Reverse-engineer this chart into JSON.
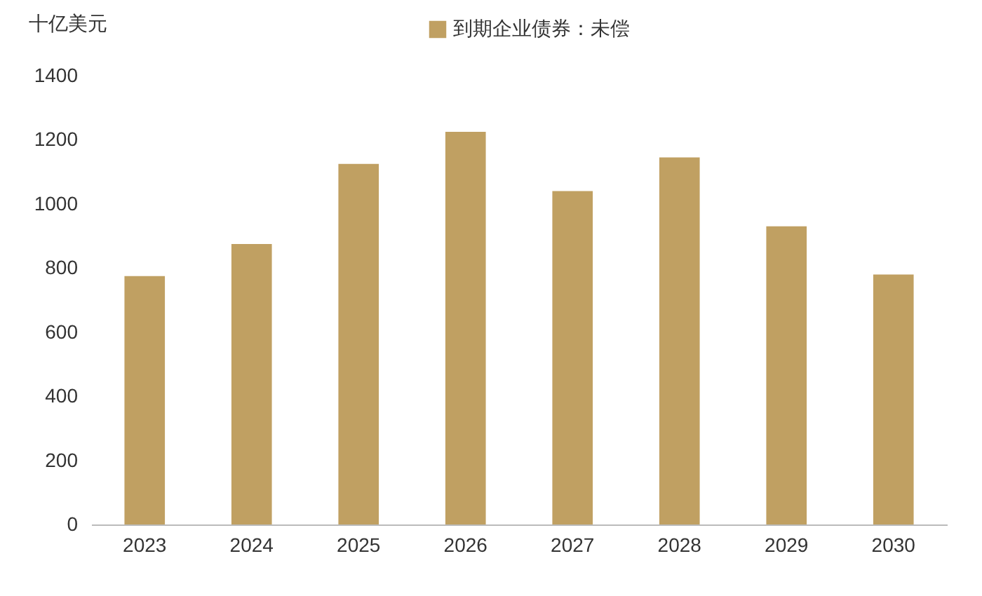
{
  "chart_data": {
    "type": "bar",
    "ylabel": "十亿美元",
    "categories": [
      "2023",
      "2024",
      "2025",
      "2026",
      "2027",
      "2028",
      "2029",
      "2030"
    ],
    "series": [
      {
        "name": "到期企业债券：未偿",
        "color": "#c0a062",
        "values": [
          775,
          875,
          1125,
          1225,
          1040,
          1145,
          930,
          780
        ]
      }
    ],
    "ylim": [
      0,
      1400
    ],
    "yticks": [
      0,
      200,
      400,
      600,
      800,
      1000,
      1200,
      1400
    ],
    "grid": false,
    "legend": "top"
  }
}
